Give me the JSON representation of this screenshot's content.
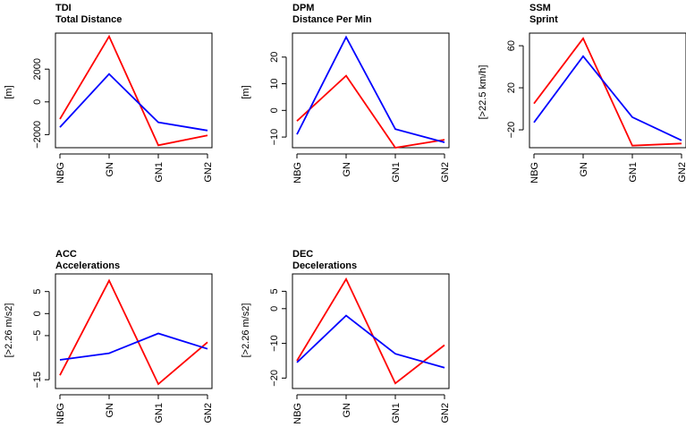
{
  "chart_data": [
    {
      "type": "line",
      "code": "TDI",
      "title": "Total Distance",
      "ylabel": "[m]",
      "categories": [
        "NBG",
        "GN",
        "GN1",
        "GN2"
      ],
      "yticks": [
        -2000,
        0,
        2000
      ],
      "ytick_labels": [
        "−2000",
        "0",
        "2000"
      ],
      "ylim": [
        -2800,
        4200
      ],
      "series": [
        {
          "name": "red",
          "color": "#ff0000",
          "values": [
            -1050,
            4000,
            -2650,
            -2050
          ]
        },
        {
          "name": "blue",
          "color": "#0000ff",
          "values": [
            -1550,
            1700,
            -1250,
            -1750
          ]
        }
      ]
    },
    {
      "type": "line",
      "code": "DPM",
      "title": "Distance Per Min",
      "ylabel": "[m]",
      "categories": [
        "NBG",
        "GN",
        "GN1",
        "GN2"
      ],
      "yticks": [
        -10,
        0,
        10,
        20
      ],
      "ytick_labels": [
        "−10",
        "0",
        "10",
        "20"
      ],
      "ylim": [
        -14,
        29
      ],
      "series": [
        {
          "name": "red",
          "color": "#ff0000",
          "values": [
            -4,
            13,
            -14,
            -11
          ]
        },
        {
          "name": "blue",
          "color": "#0000ff",
          "values": [
            -9,
            27.5,
            -7,
            -12
          ]
        }
      ]
    },
    {
      "type": "line",
      "code": "SSM",
      "title": "Sprint",
      "ylabel": "[>22.5 km/h]",
      "categories": [
        "NBG",
        "GN",
        "GN1",
        "GN2"
      ],
      "yticks": [
        -20,
        20,
        60
      ],
      "ytick_labels": [
        "−20",
        "20",
        "60"
      ],
      "ylim": [
        -37,
        72
      ],
      "series": [
        {
          "name": "red",
          "color": "#ff0000",
          "values": [
            5,
            67,
            -35,
            -33
          ]
        },
        {
          "name": "blue",
          "color": "#0000ff",
          "values": [
            -13,
            50,
            -8,
            -30
          ]
        }
      ]
    },
    {
      "type": "line",
      "code": "ACC",
      "title": "Accelerations",
      "ylabel": "[>2.26 m/s2]",
      "categories": [
        "NBG",
        "GN",
        "GN1",
        "GN2"
      ],
      "yticks": [
        -15,
        -5,
        0,
        5
      ],
      "ytick_labels": [
        "−15",
        "−5",
        "0",
        "5"
      ],
      "ylim": [
        -17,
        9
      ],
      "series": [
        {
          "name": "red",
          "color": "#ff0000",
          "values": [
            -14,
            7.5,
            -16,
            -6.5
          ]
        },
        {
          "name": "blue",
          "color": "#0000ff",
          "values": [
            -10.5,
            -9,
            -4.5,
            -8
          ]
        }
      ]
    },
    {
      "type": "line",
      "code": "DEC",
      "title": "Decelerations",
      "ylabel": "[>2.26 m/s2]",
      "categories": [
        "NBG",
        "GN",
        "GN1",
        "GN2"
      ],
      "yticks": [
        -20,
        -10,
        0,
        5
      ],
      "ytick_labels": [
        "−20",
        "−10",
        "0",
        "5"
      ],
      "ylim": [
        -23,
        10
      ],
      "series": [
        {
          "name": "red",
          "color": "#ff0000",
          "values": [
            -15,
            8.5,
            -21.5,
            -10.5
          ]
        },
        {
          "name": "blue",
          "color": "#0000ff",
          "values": [
            -15.5,
            -2,
            -13,
            -17
          ]
        }
      ]
    }
  ]
}
